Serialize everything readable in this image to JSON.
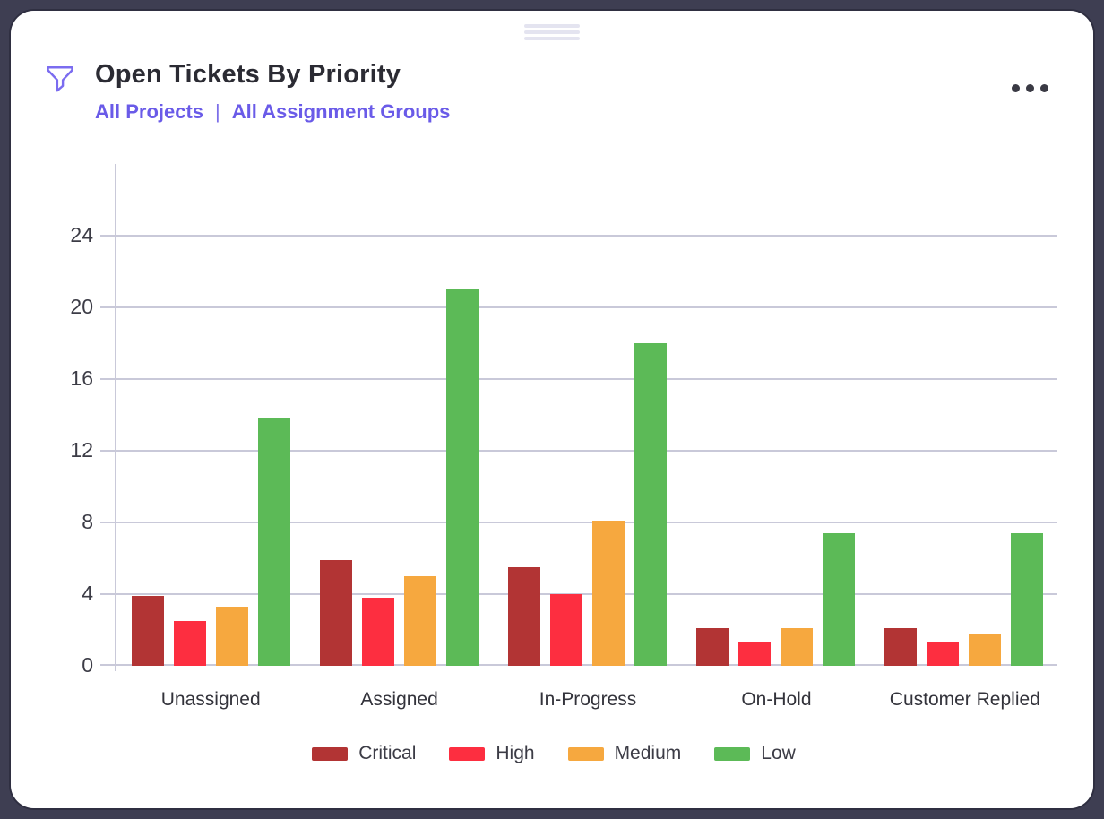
{
  "window": {
    "background_color": "#3e3e52",
    "card_color": "#ffffff"
  },
  "header": {
    "title": "Open Tickets By Priority",
    "filters": {
      "project": "All Projects",
      "separator": "|",
      "assignment_group": "All Assignment Groups"
    },
    "accent_color": "#6a5be8",
    "filter_icon": "funnel-icon",
    "menu_icon": "ellipsis-icon"
  },
  "chart_data": {
    "type": "bar",
    "title": "Open Tickets By Priority",
    "categories": [
      "Unassigned",
      "Assigned",
      "In-Progress",
      "On-Hold",
      "Customer Replied"
    ],
    "series": [
      {
        "name": "Critical",
        "color": "#b23434",
        "values": [
          3.9,
          5.9,
          5.5,
          2.1,
          2.1
        ]
      },
      {
        "name": "High",
        "color": "#fd2e40",
        "values": [
          2.5,
          3.8,
          4.0,
          1.3,
          1.3
        ]
      },
      {
        "name": "Medium",
        "color": "#f6a83f",
        "values": [
          3.3,
          5.0,
          8.1,
          2.1,
          1.8
        ]
      },
      {
        "name": "Low",
        "color": "#5cba57",
        "values": [
          13.8,
          21.0,
          18.0,
          7.4,
          7.4
        ]
      }
    ],
    "xlabel": "",
    "ylabel": "",
    "ylim": [
      0,
      28
    ],
    "yticks": [
      0,
      4,
      8,
      12,
      16,
      20,
      24
    ],
    "grid": true,
    "grid_color": "#c9c9d9",
    "legend_position": "bottom"
  }
}
